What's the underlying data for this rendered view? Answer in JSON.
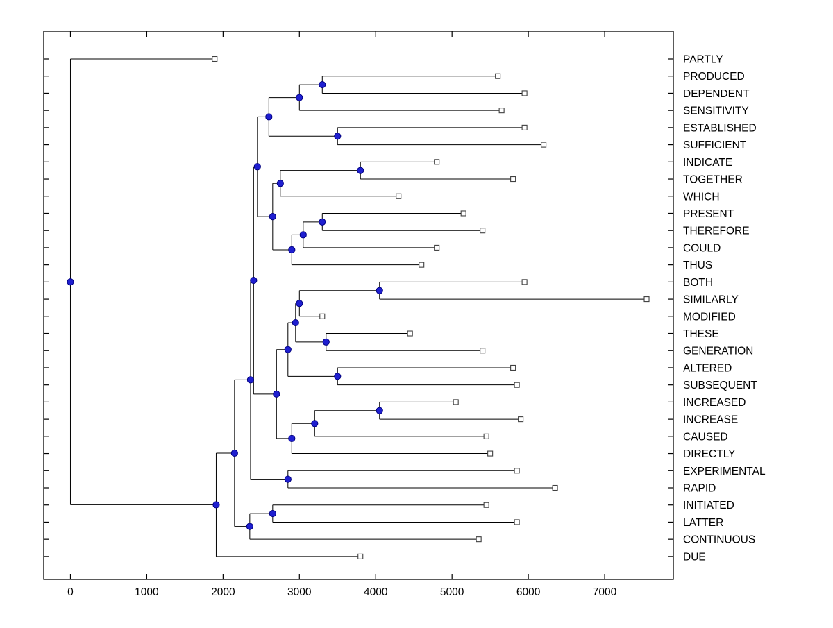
{
  "figure": {
    "background": "#ffffff",
    "axes_color": "#000000"
  },
  "chart_data": {
    "type": "dendrogram",
    "orientation": "horizontal",
    "title": "",
    "xlabel": "",
    "ylabel": "",
    "grid": false,
    "legend": false,
    "xlim": [
      -350,
      7900
    ],
    "x_ticks": [
      0,
      1000,
      2000,
      3000,
      4000,
      5000,
      6000,
      7000
    ],
    "n_leaves": 30,
    "marker_styles": {
      "internal_node": {
        "shape": "circle",
        "fill": "#1f1fd0",
        "edge": "#000080"
      },
      "leaf_node": {
        "shape": "square",
        "fill": "#ffffff",
        "edge": "#404040"
      },
      "branch_color": "#000000"
    },
    "leaf_order": [
      "PARTLY",
      "PRODUCED",
      "DEPENDENT",
      "SENSITIVITY",
      "ESTABLISHED",
      "SUFFICIENT",
      "INDICATE",
      "TOGETHER",
      "WHICH",
      "PRESENT",
      "THEREFORE",
      "COULD",
      "THUS",
      "BOTH",
      "SIMILARLY",
      "MODIFIED",
      "THESE",
      "GENERATION",
      "ALTERED",
      "SUBSEQUENT",
      "INCREASED",
      "INCREASE",
      "CAUSED",
      "DIRECTLY",
      "EXPERIMENTAL",
      "RAPID",
      "INITIATED",
      "LATTER",
      "CONTINUOUS",
      "DUE"
    ],
    "leaves": [
      {
        "label": "PARTLY",
        "x": 1890
      },
      {
        "label": "PRODUCED",
        "x": 5600
      },
      {
        "label": "DEPENDENT",
        "x": 5950
      },
      {
        "label": "SENSITIVITY",
        "x": 5650
      },
      {
        "label": "ESTABLISHED",
        "x": 5950
      },
      {
        "label": "SUFFICIENT",
        "x": 6200
      },
      {
        "label": "INDICATE",
        "x": 4800
      },
      {
        "label": "TOGETHER",
        "x": 5800
      },
      {
        "label": "WHICH",
        "x": 4300
      },
      {
        "label": "PRESENT",
        "x": 5150
      },
      {
        "label": "THEREFORE",
        "x": 5400
      },
      {
        "label": "COULD",
        "x": 4800
      },
      {
        "label": "THUS",
        "x": 4600
      },
      {
        "label": "BOTH",
        "x": 5950
      },
      {
        "label": "SIMILARLY",
        "x": 7550
      },
      {
        "label": "MODIFIED",
        "x": 3300
      },
      {
        "label": "THESE",
        "x": 4450
      },
      {
        "label": "GENERATION",
        "x": 5400
      },
      {
        "label": "ALTERED",
        "x": 5800
      },
      {
        "label": "SUBSEQUENT",
        "x": 5850
      },
      {
        "label": "INCREASED",
        "x": 5050
      },
      {
        "label": "INCREASE",
        "x": 5900
      },
      {
        "label": "CAUSED",
        "x": 5450
      },
      {
        "label": "DIRECTLY",
        "x": 5500
      },
      {
        "label": "EXPERIMENTAL",
        "x": 5850
      },
      {
        "label": "RAPID",
        "x": 6350
      },
      {
        "label": "INITIATED",
        "x": 5450
      },
      {
        "label": "LATTER",
        "x": 5850
      },
      {
        "label": "CONTINUOUS",
        "x": 5350
      },
      {
        "label": "DUE",
        "x": 3800
      }
    ],
    "tree": {
      "x": 0,
      "children": [
        {
          "leaf": "PARTLY",
          "x": 1890
        },
        {
          "x": 1910,
          "children": [
            {
              "x": 2150,
              "children": [
                {
                  "x": 2360,
                  "children": [
                    {
                      "x": 2400,
                      "children": [
                        {
                          "x": 2450,
                          "children": [
                            {
                              "x": 2600,
                              "children": [
                                {
                                  "x": 3000,
                                  "children": [
                                    {
                                      "x": 3300,
                                      "children": [
                                        {
                                          "leaf": "PRODUCED",
                                          "x": 5600
                                        },
                                        {
                                          "leaf": "DEPENDENT",
                                          "x": 5950
                                        }
                                      ]
                                    },
                                    {
                                      "leaf": "SENSITIVITY",
                                      "x": 5650
                                    }
                                  ]
                                },
                                {
                                  "x": 3500,
                                  "children": [
                                    {
                                      "leaf": "ESTABLISHED",
                                      "x": 5950
                                    },
                                    {
                                      "leaf": "SUFFICIENT",
                                      "x": 6200
                                    }
                                  ]
                                }
                              ]
                            },
                            {
                              "x": 2650,
                              "children": [
                                {
                                  "x": 2750,
                                  "children": [
                                    {
                                      "x": 3800,
                                      "children": [
                                        {
                                          "leaf": "INDICATE",
                                          "x": 4800
                                        },
                                        {
                                          "leaf": "TOGETHER",
                                          "x": 5800
                                        }
                                      ]
                                    },
                                    {
                                      "leaf": "WHICH",
                                      "x": 4300
                                    }
                                  ]
                                },
                                {
                                  "x": 2900,
                                  "children": [
                                    {
                                      "x": 3050,
                                      "children": [
                                        {
                                          "x": 3300,
                                          "children": [
                                            {
                                              "leaf": "PRESENT",
                                              "x": 5150
                                            },
                                            {
                                              "leaf": "THEREFORE",
                                              "x": 5400
                                            }
                                          ]
                                        },
                                        {
                                          "leaf": "COULD",
                                          "x": 4800
                                        }
                                      ]
                                    },
                                    {
                                      "leaf": "THUS",
                                      "x": 4600
                                    }
                                  ]
                                }
                              ]
                            }
                          ]
                        },
                        {
                          "x": 2700,
                          "children": [
                            {
                              "x": 2850,
                              "children": [
                                {
                                  "x": 2950,
                                  "children": [
                                    {
                                      "x": 3000,
                                      "children": [
                                        {
                                          "x": 4050,
                                          "children": [
                                            {
                                              "leaf": "BOTH",
                                              "x": 5950
                                            },
                                            {
                                              "leaf": "SIMILARLY",
                                              "x": 7550
                                            }
                                          ]
                                        },
                                        {
                                          "leaf": "MODIFIED",
                                          "x": 3300
                                        }
                                      ]
                                    },
                                    {
                                      "x": 3350,
                                      "children": [
                                        {
                                          "leaf": "THESE",
                                          "x": 4450
                                        },
                                        {
                                          "leaf": "GENERATION",
                                          "x": 5400
                                        }
                                      ]
                                    }
                                  ]
                                },
                                {
                                  "x": 3500,
                                  "children": [
                                    {
                                      "leaf": "ALTERED",
                                      "x": 5800
                                    },
                                    {
                                      "leaf": "SUBSEQUENT",
                                      "x": 5850
                                    }
                                  ]
                                }
                              ]
                            },
                            {
                              "x": 2900,
                              "children": [
                                {
                                  "x": 3200,
                                  "children": [
                                    {
                                      "x": 4050,
                                      "children": [
                                        {
                                          "leaf": "INCREASED",
                                          "x": 5050
                                        },
                                        {
                                          "leaf": "INCREASE",
                                          "x": 5900
                                        }
                                      ]
                                    },
                                    {
                                      "leaf": "CAUSED",
                                      "x": 5450
                                    }
                                  ]
                                },
                                {
                                  "leaf": "DIRECTLY",
                                  "x": 5500
                                }
                              ]
                            }
                          ]
                        }
                      ]
                    },
                    {
                      "x": 2850,
                      "children": [
                        {
                          "leaf": "EXPERIMENTAL",
                          "x": 5850
                        },
                        {
                          "leaf": "RAPID",
                          "x": 6350
                        }
                      ]
                    }
                  ]
                },
                {
                  "x": 2350,
                  "children": [
                    {
                      "x": 2650,
                      "children": [
                        {
                          "leaf": "INITIATED",
                          "x": 5450
                        },
                        {
                          "leaf": "LATTER",
                          "x": 5850
                        }
                      ]
                    },
                    {
                      "leaf": "CONTINUOUS",
                      "x": 5350
                    }
                  ]
                }
              ]
            },
            {
              "leaf": "DUE",
              "x": 3800
            }
          ]
        }
      ]
    }
  }
}
